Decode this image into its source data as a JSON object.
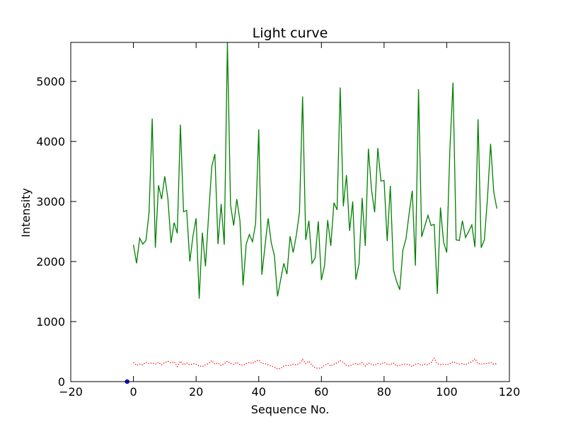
{
  "chart_data": {
    "type": "line",
    "title": "Light curve",
    "xlabel": "Sequence No.",
    "ylabel": "Intensity",
    "xlim": [
      -20,
      120
    ],
    "ylim": [
      0,
      5650
    ],
    "x_ticks": [
      -20,
      0,
      20,
      40,
      60,
      80,
      100,
      120
    ],
    "y_ticks": [
      0,
      1000,
      2000,
      3000,
      4000,
      5000
    ],
    "x_tick_labels": [
      "−20",
      "0",
      "20",
      "40",
      "60",
      "80",
      "100",
      "120"
    ],
    "y_tick_labels": [
      "0",
      "1000",
      "2000",
      "3000",
      "4000",
      "5000"
    ],
    "grid": false,
    "series": [
      {
        "color": "#008000",
        "style": "solid",
        "x_start": 0,
        "values": [
          2280,
          1970,
          2390,
          2290,
          2350,
          2820,
          4380,
          2230,
          3270,
          3040,
          3420,
          3050,
          2310,
          2650,
          2470,
          4280,
          2830,
          2850,
          2000,
          2420,
          2720,
          1380,
          2480,
          1920,
          2770,
          3580,
          3790,
          2290,
          2960,
          2280,
          5650,
          2940,
          2600,
          3040,
          2680,
          1600,
          2290,
          2450,
          2330,
          2630,
          4200,
          1780,
          2260,
          2720,
          2310,
          2100,
          1420,
          1700,
          1970,
          1790,
          2420,
          2150,
          2440,
          2820,
          4750,
          2360,
          2680,
          1970,
          2060,
          2670,
          1690,
          1930,
          2690,
          2260,
          2980,
          2860,
          4900,
          2920,
          3440,
          2510,
          3000,
          1700,
          1960,
          3060,
          2260,
          3880,
          3190,
          2820,
          3890,
          3340,
          3350,
          2340,
          3260,
          1860,
          1670,
          1530,
          2190,
          2380,
          2800,
          3180,
          1930,
          4870,
          2410,
          2590,
          2770,
          2600,
          2620,
          1460,
          2900,
          2320,
          2150,
          3860,
          4980,
          2360,
          2350,
          2680,
          2400,
          2500,
          2610,
          2240,
          4370,
          2230,
          2360,
          3050,
          3960,
          3160,
          2880
        ]
      },
      {
        "color": "#ff0000",
        "style": "dotted",
        "x_start": 0,
        "values": [
          320,
          270,
          290,
          280,
          320,
          300,
          310,
          290,
          320,
          280,
          320,
          340,
          310,
          330,
          250,
          340,
          280,
          310,
          280,
          300,
          290,
          260,
          250,
          280,
          300,
          350,
          290,
          310,
          270,
          300,
          340,
          300,
          290,
          320,
          280,
          270,
          300,
          320,
          300,
          340,
          360,
          300,
          300,
          280,
          260,
          240,
          210,
          220,
          260,
          270,
          270,
          290,
          280,
          300,
          370,
          300,
          340,
          270,
          230,
          220,
          230,
          270,
          300,
          260,
          290,
          310,
          350,
          320,
          270,
          260,
          290,
          300,
          280,
          320,
          260,
          310,
          290,
          270,
          300,
          290,
          320,
          290,
          280,
          310,
          260,
          270,
          290,
          290,
          280,
          250,
          290,
          300,
          270,
          290,
          280,
          320,
          390,
          300,
          280,
          290,
          280,
          300,
          330,
          310,
          290,
          300,
          280,
          310,
          330,
          380,
          300,
          290,
          300,
          300,
          320,
          290,
          300
        ]
      },
      {
        "color": "#0000ff",
        "style": "marker",
        "x": [
          -2
        ],
        "values": [
          0
        ]
      }
    ]
  }
}
